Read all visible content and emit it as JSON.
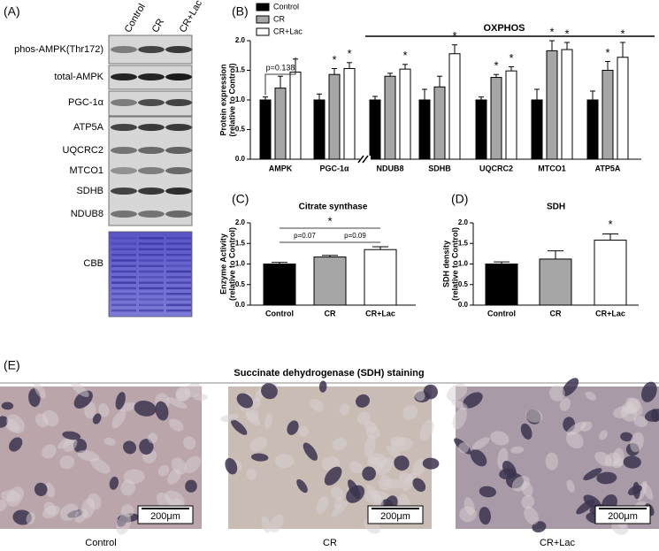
{
  "panel_labels": [
    "(A)",
    "(B)",
    "(C)",
    "(D)",
    "(E)"
  ],
  "blot": {
    "columns": [
      "Control",
      "CR",
      "CR+Lac"
    ],
    "rows": [
      "phos-AMPK(Thr172)",
      "total-AMPK",
      "PGC-1α",
      "ATP5A",
      "UQCRC2",
      "MTCO1",
      "SDHB",
      "NDUB8"
    ],
    "stain": "CBB"
  },
  "staining": {
    "title": "Succinate dehydrogenase (SDH) staining",
    "images": [
      {
        "label": "Control",
        "scale": "200μm"
      },
      {
        "label": "CR",
        "scale": "200μm"
      },
      {
        "label": "CR+Lac",
        "scale": "200μm"
      }
    ]
  },
  "chart_data": [
    {
      "type": "grouped-bar",
      "ylabel": [
        "Protein expression",
        "(relative to Control)"
      ],
      "categories": [
        "AMPK",
        "PGC-1α",
        "NDUB8",
        "SDHB",
        "UQCRC2",
        "MTCO1",
        "ATP5A"
      ],
      "series": [
        {
          "name": "Control",
          "color": "#000000",
          "values": [
            1.0,
            1.0,
            1.0,
            1.0,
            1.0,
            1.0,
            1.0
          ],
          "errors": [
            0.05,
            0.1,
            0.06,
            0.18,
            0.05,
            0.18,
            0.15
          ],
          "significance": [
            null,
            null,
            null,
            null,
            null,
            null,
            null
          ]
        },
        {
          "name": "CR",
          "color": "#a6a6a6",
          "values": [
            1.2,
            1.43,
            1.4,
            1.22,
            1.38,
            1.83,
            1.5
          ],
          "errors": [
            0.2,
            0.1,
            0.05,
            0.18,
            0.05,
            0.17,
            0.15
          ],
          "significance": [
            null,
            "*",
            null,
            null,
            "*",
            "*",
            "*"
          ]
        },
        {
          "name": "CR+Lac",
          "color": "#ffffff",
          "values": [
            1.47,
            1.53,
            1.52,
            1.78,
            1.49,
            1.85,
            1.72
          ],
          "errors": [
            0.22,
            0.1,
            0.08,
            0.15,
            0.07,
            0.12,
            0.25
          ],
          "significance": [
            null,
            "*",
            "*",
            "*",
            "*",
            "*",
            "*"
          ]
        }
      ],
      "ylim": [
        0,
        2.0
      ],
      "yticks": [
        {
          "value": 0,
          "label": "0.0"
        },
        0.5,
        {
          "value": 1,
          "label": "1.0"
        },
        1.5,
        {
          "value": 2,
          "label": "2.0"
        }
      ],
      "annotations": [
        "p=0.138",
        "OXPHOS"
      ],
      "legend": "top-left"
    },
    {
      "type": "bar",
      "title": "Citrate synthase",
      "ylabel": [
        "Enzyme Activity",
        "(relative to Control)"
      ],
      "categories": [
        "Control",
        "CR",
        "CR+Lac"
      ],
      "values": [
        1.0,
        1.17,
        1.35
      ],
      "errors": [
        0.04,
        0.04,
        0.07
      ],
      "colors": [
        "#000000",
        "#a6a6a6",
        "#ffffff"
      ],
      "significance": [
        null,
        null,
        null
      ],
      "comparisons": [
        "p=0.07",
        "p=0.09",
        "*"
      ],
      "ylim": [
        0,
        2.0
      ],
      "yticks": [
        {
          "value": 0,
          "label": "0.0"
        },
        0.5,
        {
          "value": 1,
          "label": "1.0"
        },
        1.5,
        {
          "value": 2,
          "label": "2.0"
        }
      ]
    },
    {
      "type": "bar",
      "title": "SDH",
      "ylabel": [
        "SDH density",
        "(relative to Control)"
      ],
      "categories": [
        "Control",
        "CR",
        "CR+Lac"
      ],
      "values": [
        1.0,
        1.12,
        1.58
      ],
      "errors": [
        0.05,
        0.2,
        0.15
      ],
      "colors": [
        "#000000",
        "#a6a6a6",
        "#ffffff"
      ],
      "significance": [
        null,
        null,
        "*"
      ],
      "ylim": [
        0,
        2.0
      ],
      "yticks": [
        {
          "value": 0,
          "label": "0.0"
        },
        0.5,
        {
          "value": 1,
          "label": "1.0"
        },
        1.5,
        {
          "value": 2,
          "label": "2.0"
        }
      ]
    }
  ]
}
